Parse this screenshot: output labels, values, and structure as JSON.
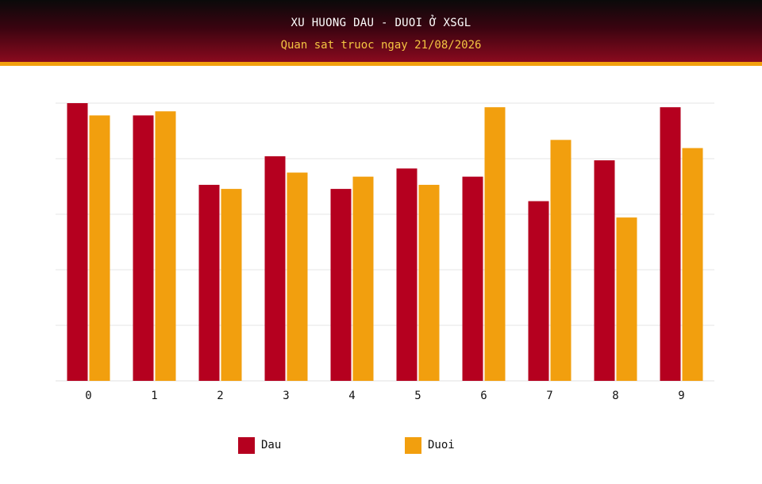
{
  "header": {
    "title": "XU HUONG DAU - DUOI Ở XSGL",
    "subtitle": "Quan sat truoc ngay 21/08/2026"
  },
  "colors": {
    "dau": "#b5001f",
    "duoi": "#f29f0e",
    "header_accent": "#f2a00e",
    "grid": "#e6e6e6"
  },
  "chart_data": {
    "type": "bar",
    "title": "XU HUONG DAU - DUOI Ở XSGL",
    "subtitle": "Quan sat truoc ngay 21/08/2026",
    "xlabel": "",
    "ylabel": "",
    "categories": [
      "0",
      "1",
      "2",
      "3",
      "4",
      "5",
      "6",
      "7",
      "8",
      "9"
    ],
    "series": [
      {
        "name": "Dau",
        "values": [
          6.8,
          6.5,
          4.8,
          5.5,
          4.7,
          5.2,
          5.0,
          4.4,
          5.4,
          6.7
        ]
      },
      {
        "name": "Duoi",
        "values": [
          6.5,
          6.6,
          4.7,
          5.1,
          5.0,
          4.8,
          6.7,
          5.9,
          4.0,
          5.7
        ]
      }
    ],
    "ylim": [
      0,
      6.8
    ],
    "y_ticks_shown": false,
    "grid": true,
    "legend": "bottom-center"
  }
}
